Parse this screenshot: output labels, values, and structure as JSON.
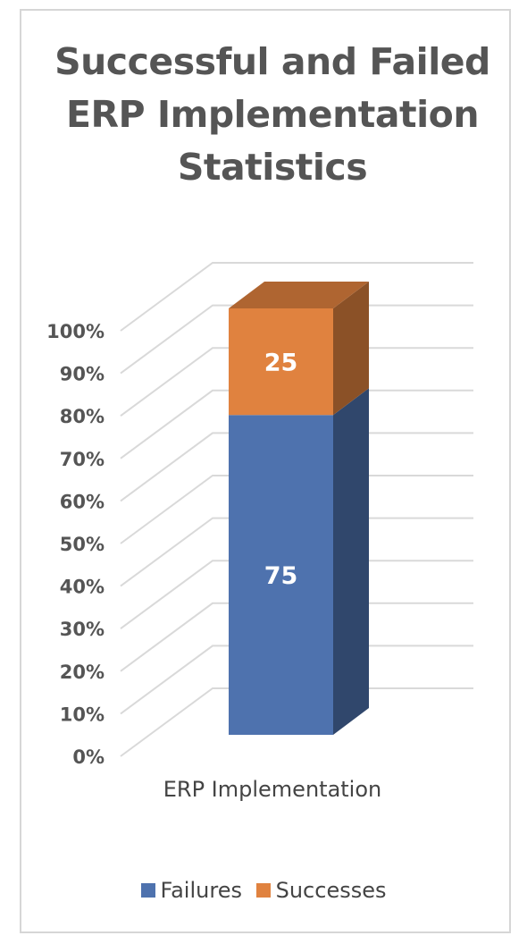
{
  "chart_data": {
    "type": "bar",
    "stacked": true,
    "three_d": true,
    "title_lines": [
      "Successful and Failed",
      "ERP Implementation",
      "Statistics"
    ],
    "categories": [
      "ERP Implementation"
    ],
    "series": [
      {
        "name": "Failures",
        "values": [
          75
        ],
        "color": "#4e72ae"
      },
      {
        "name": "Successes",
        "values": [
          25
        ],
        "color": "#e0823f"
      }
    ],
    "ylim": [
      0,
      100
    ],
    "y_ticks": [
      "0%",
      "10%",
      "20%",
      "30%",
      "40%",
      "50%",
      "60%",
      "70%",
      "80%",
      "90%",
      "100%"
    ],
    "data_labels": [
      "75",
      "25"
    ],
    "grid": true,
    "legend": "bottom"
  }
}
